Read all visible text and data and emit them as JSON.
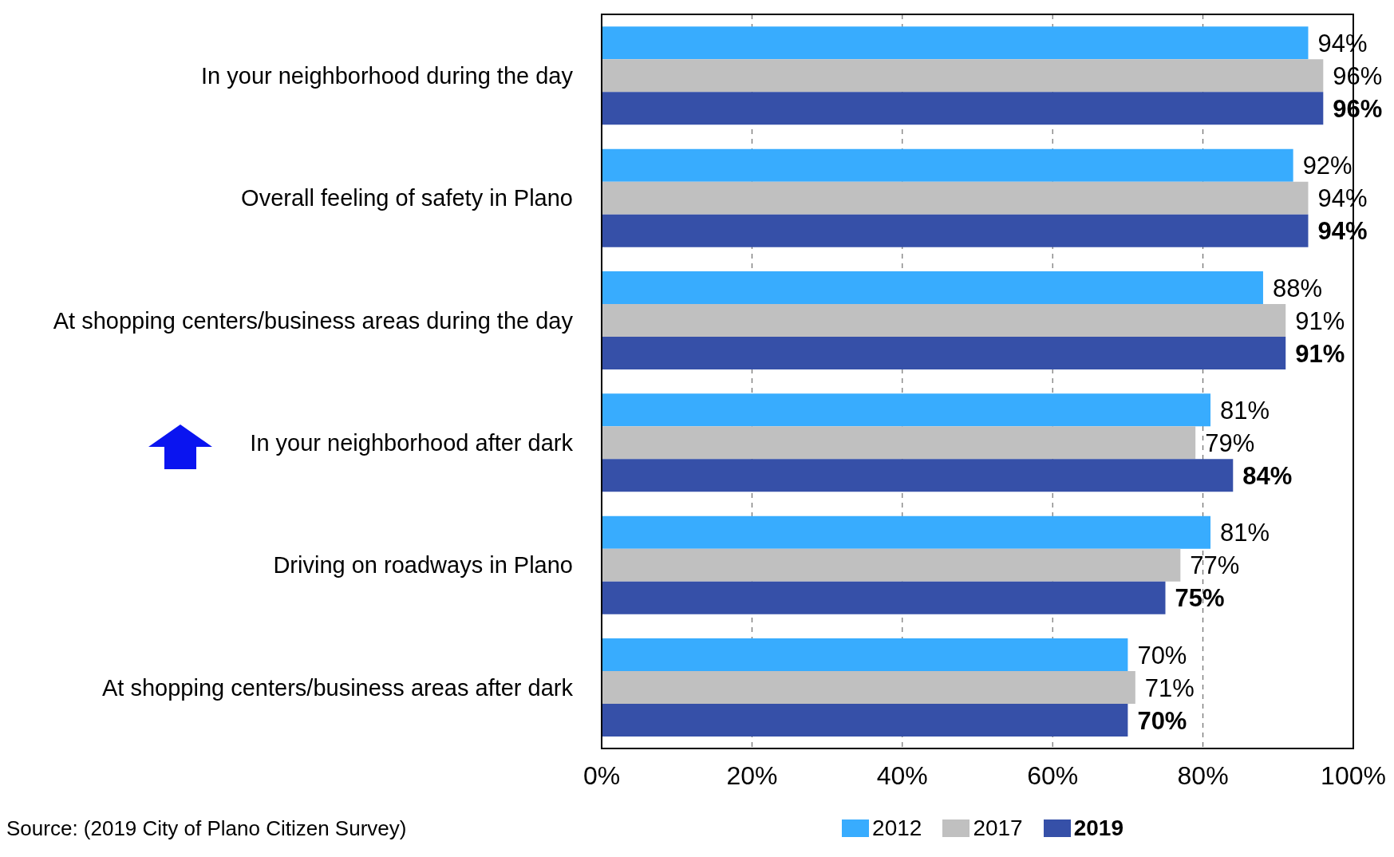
{
  "chart_data": {
    "type": "bar",
    "orientation": "horizontal",
    "categories": [
      "In your neighborhood during the day",
      "Overall feeling of safety in Plano",
      "At shopping centers/business areas during the day",
      "In your neighborhood after dark",
      "Driving on roadways in Plano",
      "At shopping centers/business areas after dark"
    ],
    "series": [
      {
        "name": "2012",
        "color": "#38acfe",
        "values": [
          94,
          92,
          88,
          81,
          81,
          70
        ],
        "value_labels": [
          "94%",
          "92%",
          "88%",
          "81%",
          "81%",
          "70%"
        ]
      },
      {
        "name": "2017",
        "color": "#c0c0c0",
        "values": [
          96,
          94,
          91,
          79,
          77,
          71
        ],
        "value_labels": [
          "96%",
          "94%",
          "91%",
          "79%",
          "77%",
          "71%"
        ]
      },
      {
        "name": "2019",
        "color": "#3650a8",
        "values": [
          96,
          94,
          91,
          84,
          75,
          70
        ],
        "value_labels": [
          "96%",
          "94%",
          "91%",
          "84%",
          "75%",
          "70%"
        ]
      }
    ],
    "xlim": [
      0,
      100
    ],
    "xticks": [
      {
        "value": 0,
        "label": "0%"
      },
      {
        "value": 20,
        "label": "20%"
      },
      {
        "value": 40,
        "label": "40%"
      },
      {
        "value": 60,
        "label": "60%"
      },
      {
        "value": 80,
        "label": "80%"
      },
      {
        "value": 100,
        "label": "100%"
      }
    ],
    "grid": "x",
    "legend": "bottom",
    "annotations": [
      "Source: (2019 City of Plano Citizen Survey)"
    ]
  }
}
